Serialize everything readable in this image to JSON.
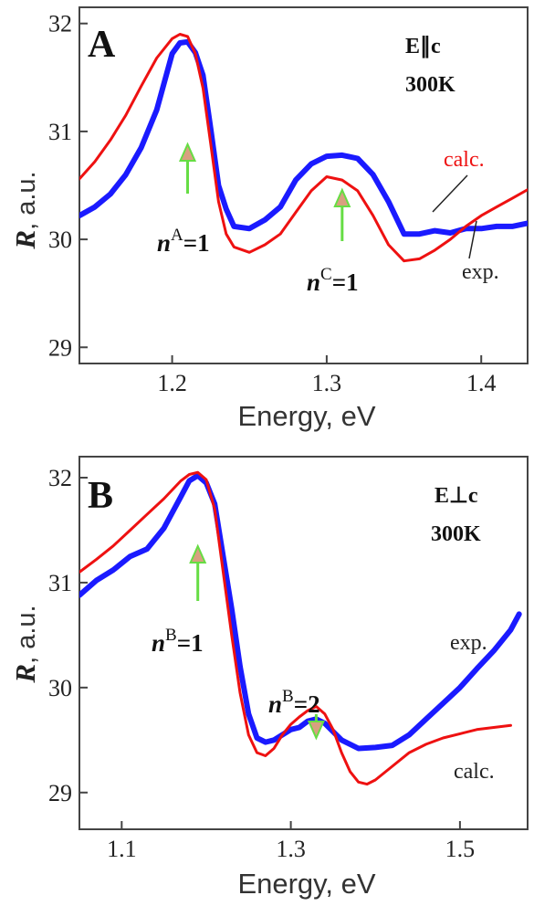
{
  "chart_data": [
    {
      "type": "line",
      "panel_label": "A",
      "condition": "E∥c",
      "temperature": "300K",
      "xlabel": "Energy, eV",
      "ylabel_symbol": "R",
      "ylabel_unit": ", a.u.",
      "xlim": [
        1.14,
        1.43
      ],
      "ylim": [
        28.85,
        32.15
      ],
      "xticks": [
        1.2,
        1.3,
        1.4
      ],
      "yticks": [
        29,
        30,
        31,
        32
      ],
      "grid": false,
      "colors": {
        "exp": "#1a1aff",
        "calc": "#ee1111",
        "marker": "#66dd44"
      },
      "series": [
        {
          "name": "exp.",
          "x": [
            1.14,
            1.15,
            1.16,
            1.17,
            1.18,
            1.19,
            1.2,
            1.205,
            1.21,
            1.215,
            1.22,
            1.225,
            1.23,
            1.235,
            1.24,
            1.25,
            1.26,
            1.27,
            1.28,
            1.29,
            1.3,
            1.31,
            1.32,
            1.33,
            1.34,
            1.35,
            1.36,
            1.37,
            1.38,
            1.39,
            1.4,
            1.41,
            1.42,
            1.43
          ],
          "y": [
            30.22,
            30.3,
            30.42,
            30.6,
            30.85,
            31.2,
            31.72,
            31.82,
            31.83,
            31.73,
            31.52,
            31.02,
            30.5,
            30.28,
            30.12,
            30.1,
            30.18,
            30.3,
            30.55,
            30.7,
            30.77,
            30.78,
            30.75,
            30.6,
            30.35,
            30.05,
            30.05,
            30.08,
            30.06,
            30.1,
            30.1,
            30.12,
            30.12,
            30.15
          ]
        },
        {
          "name": "calc.",
          "x": [
            1.14,
            1.15,
            1.16,
            1.17,
            1.18,
            1.19,
            1.2,
            1.205,
            1.21,
            1.215,
            1.22,
            1.225,
            1.23,
            1.235,
            1.24,
            1.25,
            1.26,
            1.27,
            1.28,
            1.29,
            1.3,
            1.31,
            1.32,
            1.33,
            1.34,
            1.35,
            1.36,
            1.37,
            1.38,
            1.39,
            1.4,
            1.41,
            1.42,
            1.43
          ],
          "y": [
            30.56,
            30.72,
            30.92,
            31.15,
            31.42,
            31.68,
            31.86,
            31.9,
            31.88,
            31.72,
            31.4,
            30.88,
            30.35,
            30.05,
            29.93,
            29.88,
            29.95,
            30.05,
            30.25,
            30.45,
            30.58,
            30.55,
            30.45,
            30.22,
            29.95,
            29.8,
            29.82,
            29.9,
            30.0,
            30.12,
            30.22,
            30.3,
            30.38,
            30.46
          ]
        }
      ],
      "annotations": [
        {
          "kind": "arrow-up",
          "x": 1.21,
          "label_main": "n",
          "label_sup": "A",
          "label_tail": "=1"
        },
        {
          "kind": "arrow-up",
          "x": 1.31,
          "label_main": "n",
          "label_sup": "C",
          "label_tail": "=1"
        }
      ],
      "legend": [
        {
          "text": "calc.",
          "series": "calc."
        },
        {
          "text": "exp.",
          "series": "exp."
        }
      ]
    },
    {
      "type": "line",
      "panel_label": "B",
      "condition": "E⊥c",
      "temperature": "300K",
      "xlabel": "Energy, eV",
      "ylabel_symbol": "R",
      "ylabel_unit": ", a.u.",
      "xlim": [
        1.05,
        1.58
      ],
      "ylim": [
        28.65,
        32.2
      ],
      "xticks": [
        1.1,
        1.3,
        1.5
      ],
      "yticks": [
        29,
        30,
        31,
        32
      ],
      "grid": false,
      "colors": {
        "exp": "#1a1aff",
        "calc": "#ee1111",
        "marker": "#66dd44"
      },
      "series": [
        {
          "name": "exp.",
          "x": [
            1.05,
            1.07,
            1.09,
            1.11,
            1.13,
            1.15,
            1.17,
            1.18,
            1.19,
            1.2,
            1.21,
            1.22,
            1.23,
            1.24,
            1.25,
            1.26,
            1.27,
            1.28,
            1.29,
            1.3,
            1.31,
            1.32,
            1.33,
            1.34,
            1.35,
            1.36,
            1.38,
            1.4,
            1.42,
            1.44,
            1.46,
            1.48,
            1.5,
            1.52,
            1.54,
            1.56,
            1.57
          ],
          "y": [
            30.88,
            31.02,
            31.12,
            31.25,
            31.32,
            31.52,
            31.82,
            31.97,
            32.02,
            31.95,
            31.75,
            31.25,
            30.75,
            30.2,
            29.75,
            29.52,
            29.48,
            29.5,
            29.55,
            29.6,
            29.62,
            29.68,
            29.7,
            29.66,
            29.58,
            29.5,
            29.42,
            29.43,
            29.45,
            29.55,
            29.7,
            29.85,
            30.0,
            30.18,
            30.35,
            30.55,
            30.7
          ]
        },
        {
          "name": "calc.",
          "x": [
            1.05,
            1.07,
            1.09,
            1.11,
            1.13,
            1.15,
            1.17,
            1.18,
            1.19,
            1.2,
            1.21,
            1.22,
            1.23,
            1.24,
            1.25,
            1.26,
            1.27,
            1.28,
            1.29,
            1.3,
            1.31,
            1.32,
            1.33,
            1.34,
            1.35,
            1.36,
            1.37,
            1.38,
            1.39,
            1.4,
            1.42,
            1.44,
            1.46,
            1.48,
            1.5,
            1.52,
            1.54,
            1.56
          ],
          "y": [
            31.1,
            31.22,
            31.35,
            31.5,
            31.65,
            31.8,
            31.97,
            32.03,
            32.05,
            31.98,
            31.7,
            31.1,
            30.5,
            29.95,
            29.55,
            29.38,
            29.35,
            29.42,
            29.55,
            29.65,
            29.72,
            29.78,
            29.82,
            29.75,
            29.6,
            29.38,
            29.2,
            29.1,
            29.08,
            29.12,
            29.25,
            29.38,
            29.46,
            29.52,
            29.56,
            29.6,
            29.62,
            29.64
          ]
        }
      ],
      "annotations": [
        {
          "kind": "arrow-up",
          "x": 1.19,
          "label_main": "n",
          "label_sup": "B",
          "label_tail": "=1"
        },
        {
          "kind": "arrow-down",
          "x": 1.33,
          "label_main": "n",
          "label_sup": "B",
          "label_tail": "=2"
        }
      ],
      "legend": [
        {
          "text": "exp.",
          "series": "exp."
        },
        {
          "text": "calc.",
          "series": "calc."
        }
      ]
    }
  ]
}
